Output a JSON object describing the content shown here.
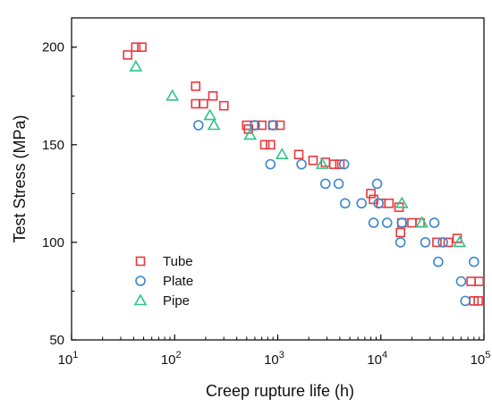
{
  "chart_data": {
    "type": "scatter",
    "title": "",
    "xlabel": "Creep rupture life (h)",
    "ylabel": "Test Stress (MPa)",
    "xscale": "log",
    "xlim": [
      10,
      100000
    ],
    "ylim": [
      50,
      215
    ],
    "x_ticks": [
      {
        "value": 10,
        "base": "10",
        "exp": "1"
      },
      {
        "value": 100,
        "base": "10",
        "exp": "2"
      },
      {
        "value": 1000,
        "base": "10",
        "exp": "3"
      },
      {
        "value": 10000,
        "base": "10",
        "exp": "4"
      },
      {
        "value": 100000,
        "base": "10",
        "exp": "5"
      }
    ],
    "y_ticks": [
      "50",
      "100",
      "150",
      "200"
    ],
    "grid": false,
    "legend_position": "bottom-left",
    "series": [
      {
        "name": "Tube",
        "marker": "square",
        "color": "#e8393f",
        "points": [
          [
            35,
            196
          ],
          [
            42,
            200
          ],
          [
            48,
            200
          ],
          [
            160,
            180
          ],
          [
            160,
            171
          ],
          [
            190,
            171
          ],
          [
            235,
            175
          ],
          [
            300,
            170
          ],
          [
            500,
            160
          ],
          [
            520,
            158
          ],
          [
            600,
            160
          ],
          [
            700,
            160
          ],
          [
            900,
            160
          ],
          [
            1050,
            160
          ],
          [
            750,
            150
          ],
          [
            850,
            150
          ],
          [
            1600,
            145
          ],
          [
            2200,
            142
          ],
          [
            2900,
            141
          ],
          [
            3500,
            140
          ],
          [
            4000,
            140
          ],
          [
            8000,
            125
          ],
          [
            8500,
            122
          ],
          [
            10000,
            120
          ],
          [
            12000,
            120
          ],
          [
            15000,
            118
          ],
          [
            16000,
            110
          ],
          [
            15500,
            105
          ],
          [
            20000,
            110
          ],
          [
            24000,
            110
          ],
          [
            35000,
            100
          ],
          [
            45000,
            100
          ],
          [
            55000,
            102
          ],
          [
            75000,
            80
          ],
          [
            90000,
            80
          ],
          [
            80000,
            70
          ],
          [
            88000,
            70
          ]
        ]
      },
      {
        "name": "Plate",
        "marker": "circle",
        "color": "#3d87c8",
        "points": [
          [
            170,
            160
          ],
          [
            600,
            160
          ],
          [
            900,
            160
          ],
          [
            850,
            140
          ],
          [
            1700,
            140
          ],
          [
            2900,
            130
          ],
          [
            3900,
            130
          ],
          [
            4400,
            140
          ],
          [
            4500,
            120
          ],
          [
            6500,
            120
          ],
          [
            9200,
            130
          ],
          [
            9500,
            120
          ],
          [
            8500,
            110
          ],
          [
            11500,
            110
          ],
          [
            15500,
            100
          ],
          [
            16000,
            110
          ],
          [
            27000,
            100
          ],
          [
            33000,
            110
          ],
          [
            36000,
            90
          ],
          [
            40000,
            100
          ],
          [
            60000,
            80
          ],
          [
            66000,
            70
          ],
          [
            80000,
            90
          ]
        ]
      },
      {
        "name": "Pipe",
        "marker": "triangle",
        "color": "#2fc488",
        "points": [
          [
            42,
            190
          ],
          [
            95,
            175
          ],
          [
            220,
            165
          ],
          [
            240,
            160
          ],
          [
            540,
            155
          ],
          [
            1100,
            145
          ],
          [
            2700,
            140
          ],
          [
            16000,
            120
          ],
          [
            25000,
            110
          ],
          [
            58000,
            100
          ]
        ]
      }
    ]
  }
}
